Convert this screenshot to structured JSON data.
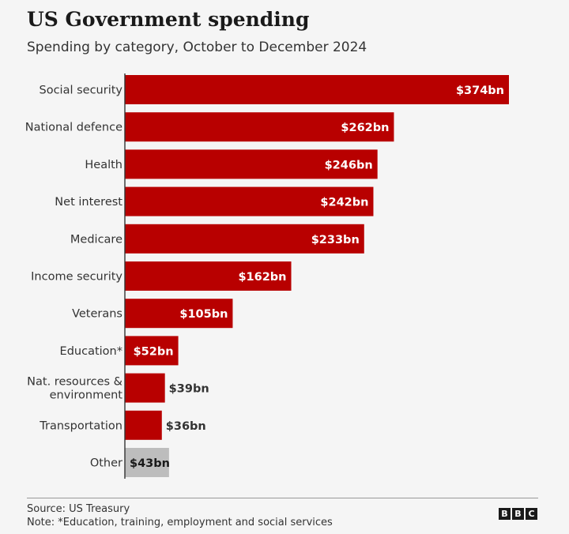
{
  "header": {
    "title": "US Government spending",
    "subtitle": "Spending by category, October to December 2024"
  },
  "chart_data": {
    "type": "bar",
    "orientation": "horizontal",
    "title": "US Government spending",
    "subtitle": "Spending by category, October to December 2024",
    "categories": [
      "Social security",
      "National defence",
      "Health",
      "Net interest",
      "Medicare",
      "Income security",
      "Veterans",
      "Education*",
      "Nat. resources & environment",
      "Transportation",
      "Other"
    ],
    "category_lines": [
      [
        "Social security"
      ],
      [
        "National defence"
      ],
      [
        "Health"
      ],
      [
        "Net interest"
      ],
      [
        "Medicare"
      ],
      [
        "Income security"
      ],
      [
        "Veterans"
      ],
      [
        "Education*"
      ],
      [
        "Nat. resources &",
        "environment"
      ],
      [
        "Transportation"
      ],
      [
        "Other"
      ]
    ],
    "values": [
      374,
      262,
      246,
      242,
      233,
      162,
      105,
      52,
      39,
      36,
      43
    ],
    "value_labels": [
      "$374bn",
      "$262bn",
      "$246bn",
      "$242bn",
      "$233bn",
      "$162bn",
      "$105bn",
      "$52bn",
      "$39bn",
      "$36bn",
      "$43bn"
    ],
    "unit": "$bn",
    "xlim": [
      0,
      374
    ],
    "colors": {
      "main": "#b80000",
      "other": "#bdbdbd",
      "label_inside": "#ffffff",
      "label_outside": "#333333",
      "label_other": "#1a1a1a"
    },
    "grid": false,
    "legend": "none"
  },
  "footer": {
    "source": "Source: US Treasury",
    "note": "Note: *Education, training, employment and social services",
    "logo_letters": [
      "B",
      "B",
      "C"
    ]
  }
}
